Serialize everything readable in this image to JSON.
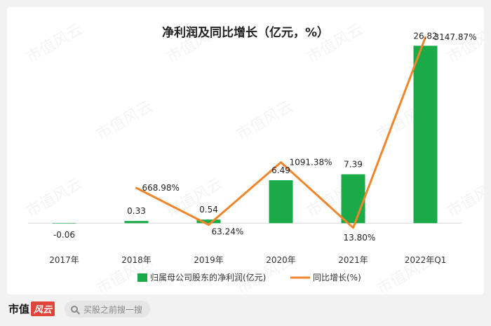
{
  "page": {
    "watermark_text": "市值风云"
  },
  "footer": {
    "logo_text": "市值",
    "logo_mark": "风云",
    "search_placeholder": "买股之前搜一搜"
  },
  "chart_data": {
    "type": "bar",
    "title": "净利润及同比增长（亿元，%）",
    "categories": [
      "2017年",
      "2018年",
      "2019年",
      "2020年",
      "2021年",
      "2022年Q1"
    ],
    "series": [
      {
        "name": "归属母公司股东的净利润(亿元)",
        "type": "bar",
        "color": "#1aaa47",
        "values": [
          -0.06,
          0.33,
          0.54,
          6.49,
          7.39,
          26.82
        ],
        "labels": [
          "-0.06",
          "0.33",
          "0.54",
          "6.49",
          "7.39",
          "26.82"
        ]
      },
      {
        "name": "同比增长(%)",
        "type": "line",
        "color": "#f0862c",
        "values": [
          null,
          668.98,
          63.24,
          1091.38,
          13.8,
          3147.87
        ],
        "labels": [
          "",
          "668.98%",
          "63.24%",
          "1091.38%",
          "13.80%",
          "3147.87%"
        ]
      }
    ],
    "bar_axis_range": [
      -2.3,
      29.5
    ],
    "line_axis_range": [
      -160,
      3300
    ],
    "grid": false,
    "legend_position": "bottom"
  }
}
